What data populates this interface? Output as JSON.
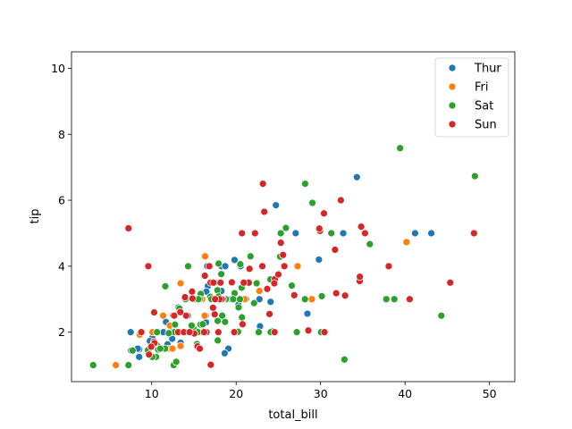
{
  "chart_data": {
    "type": "scatter",
    "xlabel": "total_bill",
    "ylabel": "tip",
    "xlim": [
      0.5,
      53
    ],
    "ylim": [
      0.5,
      10.5
    ],
    "xticks": [
      10,
      20,
      30,
      40,
      50
    ],
    "yticks": [
      2,
      4,
      6,
      8,
      10
    ],
    "grid": false,
    "legend_position": "top-right",
    "series": [
      {
        "name": "Thur",
        "color": "#1f77b4",
        "points": [
          [
            27.2,
            4.0
          ],
          [
            22.76,
            3.0
          ],
          [
            17.29,
            2.71
          ],
          [
            19.44,
            3.0
          ],
          [
            16.66,
            3.4
          ],
          [
            10.07,
            1.83
          ],
          [
            32.68,
            5.0
          ],
          [
            15.98,
            2.03
          ],
          [
            34.83,
            5.17
          ],
          [
            13.03,
            2.0
          ],
          [
            18.28,
            4.0
          ],
          [
            24.71,
            5.85
          ],
          [
            21.16,
            3.0
          ],
          [
            10.65,
            1.5
          ],
          [
            12.43,
            1.8
          ],
          [
            24.08,
            2.92
          ],
          [
            11.69,
            2.31
          ],
          [
            13.42,
            1.68
          ],
          [
            14.26,
            2.5
          ],
          [
            15.95,
            2.0
          ],
          [
            12.48,
            2.52
          ],
          [
            29.8,
            4.2
          ],
          [
            8.52,
            1.48
          ],
          [
            14.52,
            2.0
          ],
          [
            11.38,
            2.0
          ],
          [
            22.82,
            2.18
          ],
          [
            19.08,
            1.5
          ],
          [
            20.27,
            2.83
          ],
          [
            11.17,
            1.5
          ],
          [
            12.26,
            2.0
          ],
          [
            18.26,
            3.25
          ],
          [
            8.51,
            1.25
          ],
          [
            10.33,
            2.0
          ],
          [
            14.15,
            2.0
          ],
          [
            16.0,
            2.0
          ],
          [
            13.16,
            2.75
          ],
          [
            17.47,
            3.5
          ],
          [
            34.3,
            6.7
          ],
          [
            41.19,
            5.0
          ],
          [
            27.05,
            5.0
          ],
          [
            16.43,
            2.3
          ],
          [
            8.35,
            1.5
          ],
          [
            18.64,
            1.36
          ],
          [
            11.87,
            1.63
          ],
          [
            9.78,
            1.73
          ],
          [
            7.51,
            2.0
          ],
          [
            19.81,
            4.19
          ],
          [
            28.44,
            2.56
          ],
          [
            15.48,
            2.02
          ],
          [
            16.58,
            4.0
          ],
          [
            7.56,
            1.44
          ],
          [
            10.34,
            2.0
          ],
          [
            43.11,
            5.0
          ],
          [
            13.0,
            2.0
          ],
          [
            13.51,
            2.0
          ],
          [
            18.71,
            4.0
          ],
          [
            12.74,
            2.01
          ],
          [
            13.0,
            2.0
          ],
          [
            16.4,
            2.5
          ],
          [
            20.53,
            4.0
          ],
          [
            16.47,
            3.23
          ],
          [
            18.29,
            3.76
          ]
        ]
      },
      {
        "name": "Fri",
        "color": "#ff7f0e",
        "points": [
          [
            28.97,
            3.0
          ],
          [
            22.49,
            3.5
          ],
          [
            5.75,
            1.0
          ],
          [
            16.32,
            4.3
          ],
          [
            22.75,
            3.25
          ],
          [
            40.17,
            4.73
          ],
          [
            27.28,
            4.0
          ],
          [
            12.03,
            1.5
          ],
          [
            21.01,
            3.0
          ],
          [
            12.46,
            1.5
          ],
          [
            11.35,
            2.5
          ],
          [
            15.38,
            3.0
          ],
          [
            12.16,
            2.2
          ],
          [
            13.42,
            3.48
          ],
          [
            8.58,
            1.92
          ],
          [
            15.98,
            3.0
          ],
          [
            13.42,
            1.58
          ],
          [
            16.27,
            2.5
          ],
          [
            10.09,
            2.0
          ]
        ]
      },
      {
        "name": "Sat",
        "color": "#2ca02c",
        "points": [
          [
            20.65,
            3.35
          ],
          [
            17.92,
            4.08
          ],
          [
            20.29,
            2.75
          ],
          [
            15.77,
            2.23
          ],
          [
            39.42,
            7.58
          ],
          [
            19.82,
            3.18
          ],
          [
            17.81,
            2.34
          ],
          [
            13.37,
            2.0
          ],
          [
            12.69,
            2.0
          ],
          [
            21.7,
            4.3
          ],
          [
            19.65,
            3.0
          ],
          [
            9.55,
            1.45
          ],
          [
            18.35,
            2.5
          ],
          [
            15.06,
            3.0
          ],
          [
            20.69,
            2.45
          ],
          [
            17.78,
            3.27
          ],
          [
            24.06,
            3.6
          ],
          [
            16.31,
            2.0
          ],
          [
            16.93,
            3.07
          ],
          [
            18.69,
            2.31
          ],
          [
            31.27,
            5.0
          ],
          [
            16.04,
            2.24
          ],
          [
            3.07,
            1.0
          ],
          [
            20.23,
            2.01
          ],
          [
            15.01,
            2.09
          ],
          [
            12.02,
            1.97
          ],
          [
            17.07,
            3.0
          ],
          [
            26.86,
            3.14
          ],
          [
            25.28,
            5.0
          ],
          [
            14.73,
            2.2
          ],
          [
            10.51,
            1.25
          ],
          [
            17.92,
            3.08
          ],
          [
            44.3,
            2.5
          ],
          [
            22.42,
            3.48
          ],
          [
            15.36,
            1.64
          ],
          [
            20.49,
            4.06
          ],
          [
            25.21,
            4.29
          ],
          [
            18.24,
            3.76
          ],
          [
            14.31,
            4.0
          ],
          [
            14.0,
            3.0
          ],
          [
            7.25,
            1.0
          ],
          [
            10.59,
            1.61
          ],
          [
            10.63,
            2.0
          ],
          [
            50.81,
            10.0
          ],
          [
            15.81,
            3.16
          ],
          [
            26.59,
            3.41
          ],
          [
            38.73,
            3.0
          ],
          [
            24.27,
            2.03
          ],
          [
            12.76,
            2.23
          ],
          [
            30.06,
            2.0
          ],
          [
            25.89,
            5.16
          ],
          [
            48.33,
            9.0
          ],
          [
            28.15,
            3.0
          ],
          [
            11.59,
            1.5
          ],
          [
            7.74,
            1.44
          ],
          [
            30.14,
            3.09
          ],
          [
            20.45,
            3.0
          ],
          [
            13.28,
            2.72
          ],
          [
            22.12,
            2.88
          ],
          [
            24.01,
            2.0
          ],
          [
            15.69,
            3.0
          ],
          [
            11.61,
            3.39
          ],
          [
            10.77,
            1.47
          ],
          [
            15.53,
            3.0
          ],
          [
            10.07,
            1.25
          ],
          [
            12.6,
            1.0
          ],
          [
            32.83,
            1.17
          ],
          [
            35.83,
            4.67
          ],
          [
            29.03,
            5.92
          ],
          [
            27.18,
            2.0
          ],
          [
            22.67,
            2.0
          ],
          [
            17.82,
            1.75
          ],
          [
            28.17,
            6.5
          ],
          [
            12.9,
            1.1
          ],
          [
            26.88,
            3.12
          ],
          [
            15.48,
            2.0
          ],
          [
            11.02,
            1.5
          ],
          [
            17.51,
            3.0
          ],
          [
            48.27,
            6.73
          ],
          [
            37.78,
            3.0
          ],
          [
            24.1,
            2.0
          ],
          [
            18.78,
            3.0
          ],
          [
            9.94,
            1.56
          ],
          [
            25.56,
            4.34
          ]
        ]
      },
      {
        "name": "Sun",
        "color": "#d62728",
        "points": [
          [
            16.99,
            1.01
          ],
          [
            10.34,
            1.66
          ],
          [
            21.01,
            3.5
          ],
          [
            23.68,
            3.31
          ],
          [
            24.59,
            3.61
          ],
          [
            25.29,
            4.71
          ],
          [
            8.77,
            2.0
          ],
          [
            26.88,
            3.12
          ],
          [
            15.04,
            1.96
          ],
          [
            14.78,
            3.23
          ],
          [
            10.27,
            1.71
          ],
          [
            35.26,
            5.0
          ],
          [
            15.42,
            1.57
          ],
          [
            18.43,
            3.0
          ],
          [
            14.83,
            3.02
          ],
          [
            21.58,
            3.92
          ],
          [
            10.33,
            1.67
          ],
          [
            16.29,
            3.71
          ],
          [
            16.97,
            3.5
          ],
          [
            17.46,
            2.54
          ],
          [
            13.94,
            3.06
          ],
          [
            9.68,
            1.32
          ],
          [
            30.4,
            5.6
          ],
          [
            18.29,
            3.0
          ],
          [
            22.23,
            5.0
          ],
          [
            32.4,
            6.0
          ],
          [
            28.55,
            2.05
          ],
          [
            18.04,
            3.0
          ],
          [
            12.54,
            2.5
          ],
          [
            10.29,
            2.6
          ],
          [
            34.81,
            5.2
          ],
          [
            9.94,
            1.56
          ],
          [
            25.56,
            4.34
          ],
          [
            19.49,
            3.51
          ],
          [
            38.07,
            4.0
          ],
          [
            23.95,
            2.55
          ],
          [
            25.71,
            4.0
          ],
          [
            17.31,
            3.5
          ],
          [
            29.93,
            5.07
          ],
          [
            14.07,
            2.5
          ],
          [
            13.13,
            2.0
          ],
          [
            17.26,
            2.74
          ],
          [
            24.55,
            2.0
          ],
          [
            19.77,
            2.0
          ],
          [
            29.85,
            5.14
          ],
          [
            48.17,
            5.0
          ],
          [
            25.0,
            3.75
          ],
          [
            13.39,
            2.61
          ],
          [
            16.49,
            2.0
          ],
          [
            21.5,
            3.5
          ],
          [
            12.66,
            2.5
          ],
          [
            16.21,
            2.0
          ],
          [
            13.81,
            2.0
          ],
          [
            17.51,
            3.0
          ],
          [
            24.52,
            3.48
          ],
          [
            20.76,
            2.24
          ],
          [
            31.71,
            4.5
          ],
          [
            9.6,
            4.0
          ],
          [
            34.63,
            3.55
          ],
          [
            34.65,
            3.68
          ],
          [
            23.33,
            5.65
          ],
          [
            45.35,
            3.5
          ],
          [
            23.17,
            6.5
          ],
          [
            40.55,
            3.0
          ],
          [
            20.69,
            5.0
          ],
          [
            20.9,
            3.5
          ],
          [
            30.46,
            2.0
          ],
          [
            18.15,
            3.5
          ],
          [
            23.1,
            4.0
          ],
          [
            15.69,
            1.5
          ],
          [
            7.25,
            5.15
          ],
          [
            31.85,
            3.18
          ],
          [
            16.82,
            4.0
          ],
          [
            32.9,
            3.11
          ],
          [
            17.89,
            2.0
          ],
          [
            14.48,
            2.0
          ]
        ]
      }
    ]
  }
}
